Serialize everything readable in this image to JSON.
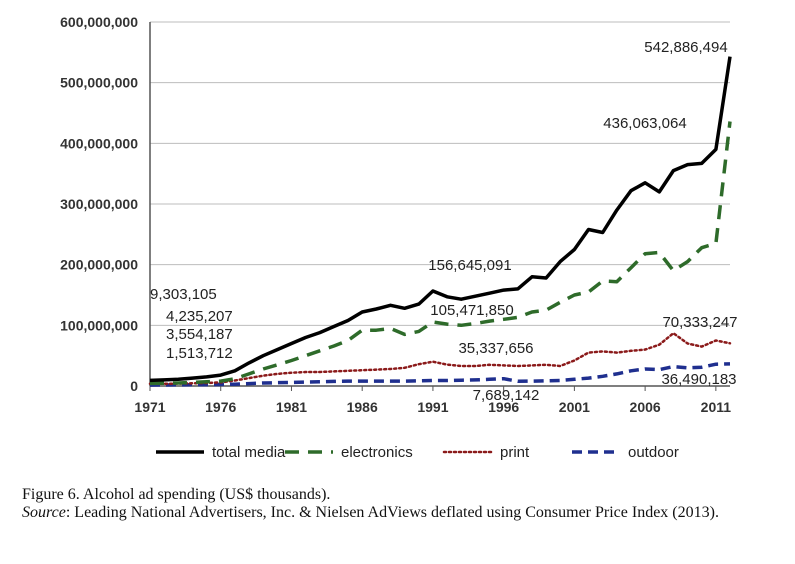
{
  "chart_data": {
    "type": "line",
    "title": "",
    "xlabel": "",
    "ylabel": "",
    "ylim": [
      0,
      600000000
    ],
    "xlim": [
      1971,
      2012
    ],
    "yticks": [
      0,
      100000000,
      200000000,
      300000000,
      400000000,
      500000000,
      600000000
    ],
    "ytick_labels": [
      "0",
      "100,000,000",
      "200,000,000",
      "300,000,000",
      "400,000,000",
      "500,000,000",
      "600,000,000"
    ],
    "xticks": [
      1971,
      1976,
      1981,
      1986,
      1991,
      1996,
      2001,
      2006,
      2011
    ],
    "xtick_labels": [
      "1971",
      "1976",
      "1981",
      "1986",
      "1991",
      "1996",
      "2001",
      "2006",
      "2011"
    ],
    "grid": true,
    "legend_position": "bottom",
    "x": [
      1971,
      1972,
      1973,
      1974,
      1975,
      1976,
      1977,
      1978,
      1979,
      1980,
      1981,
      1982,
      1983,
      1984,
      1985,
      1986,
      1987,
      1988,
      1989,
      1990,
      1991,
      1992,
      1993,
      1994,
      1995,
      1996,
      1997,
      1998,
      1999,
      2000,
      2001,
      2002,
      2003,
      2004,
      2005,
      2006,
      2007,
      2008,
      2009,
      2010,
      2011,
      2012
    ],
    "series": [
      {
        "name": "total media",
        "color": "#000000",
        "style": "solid",
        "values": [
          9303105,
          10000000,
          11000000,
          13000000,
          15000000,
          18000000,
          25000000,
          38000000,
          50000000,
          60000000,
          70000000,
          80000000,
          88000000,
          98000000,
          108000000,
          122000000,
          127000000,
          133000000,
          128000000,
          135000000,
          156645091,
          147000000,
          143000000,
          148000000,
          153000000,
          158000000,
          160000000,
          180000000,
          178000000,
          205000000,
          225000000,
          258000000,
          253000000,
          290000000,
          322000000,
          335000000,
          320000000,
          355000000,
          365000000,
          367000000,
          390000000,
          542886494
        ]
      },
      {
        "name": "electronics",
        "color": "#2e6b2a",
        "style": "dashed",
        "values": [
          4235207,
          4500000,
          5000000,
          6000000,
          7000000,
          8000000,
          12000000,
          20000000,
          28000000,
          35000000,
          42000000,
          50000000,
          58000000,
          66000000,
          75000000,
          92000000,
          92000000,
          95000000,
          85000000,
          90000000,
          105471850,
          102000000,
          100000000,
          103000000,
          107000000,
          110000000,
          113000000,
          122000000,
          125000000,
          138000000,
          150000000,
          155000000,
          173000000,
          172000000,
          195000000,
          218000000,
          220000000,
          190000000,
          205000000,
          228000000,
          235000000,
          436063064
        ]
      },
      {
        "name": "print",
        "color": "#8b1a1a",
        "style": "dotted",
        "values": [
          3554187,
          3700000,
          4000000,
          4500000,
          5000000,
          6000000,
          9000000,
          13000000,
          17000000,
          20000000,
          22000000,
          23000000,
          23000000,
          24000000,
          25000000,
          26000000,
          27000000,
          28000000,
          30000000,
          36000000,
          40000000,
          35337656,
          33000000,
          33000000,
          35000000,
          34000000,
          33000000,
          34000000,
          35000000,
          33000000,
          42000000,
          55000000,
          57000000,
          55000000,
          58000000,
          60000000,
          68000000,
          87000000,
          70000000,
          65000000,
          75000000,
          70333247
        ]
      },
      {
        "name": "outdoor",
        "color": "#1f2f8f",
        "style": "dashed",
        "values": [
          1513712,
          1600000,
          1800000,
          2000000,
          2200000,
          2500000,
          3000000,
          4000000,
          5000000,
          5500000,
          6000000,
          6500000,
          7000000,
          7500000,
          8000000,
          8000000,
          8000000,
          8000000,
          8000000,
          8500000,
          9000000,
          9000000,
          9500000,
          10000000,
          11000000,
          12000000,
          7689142,
          8000000,
          8500000,
          9000000,
          11000000,
          13000000,
          16000000,
          20000000,
          25000000,
          28000000,
          27000000,
          32000000,
          30000000,
          31000000,
          36000000,
          36490183
        ]
      }
    ],
    "annotations": [
      {
        "text": "542,886,494",
        "x": 2012,
        "y": 542886494
      },
      {
        "text": "436,063,064",
        "x": 2012,
        "y": 436063064
      },
      {
        "text": "156,645,091",
        "x": 1991,
        "y": 156645091
      },
      {
        "text": "105,471,850",
        "x": 1991,
        "y": 105471850
      },
      {
        "text": "70,333,247",
        "x": 2012,
        "y": 70333247
      },
      {
        "text": "35,337,656",
        "x": 1992,
        "y": 35337656
      },
      {
        "text": "36,490,183",
        "x": 2012,
        "y": 36490183
      },
      {
        "text": "7,689,142",
        "x": 1997,
        "y": 7689142
      },
      {
        "text": "9,303,105",
        "x": 1971,
        "y": 9303105
      },
      {
        "text": "4,235,207",
        "x": 1971,
        "y": 4235207
      },
      {
        "text": "3,554,187",
        "x": 1971,
        "y": 3554187
      },
      {
        "text": "1,513,712",
        "x": 1971,
        "y": 1513712
      }
    ]
  },
  "caption": {
    "figure_line": "Figure 6.    Alcohol ad spending (US$ thousands).",
    "source_label": "Source",
    "source_text": ": Leading National Advertisers, Inc. & Nielsen AdViews deflated using Consumer Price Index (2013)."
  }
}
